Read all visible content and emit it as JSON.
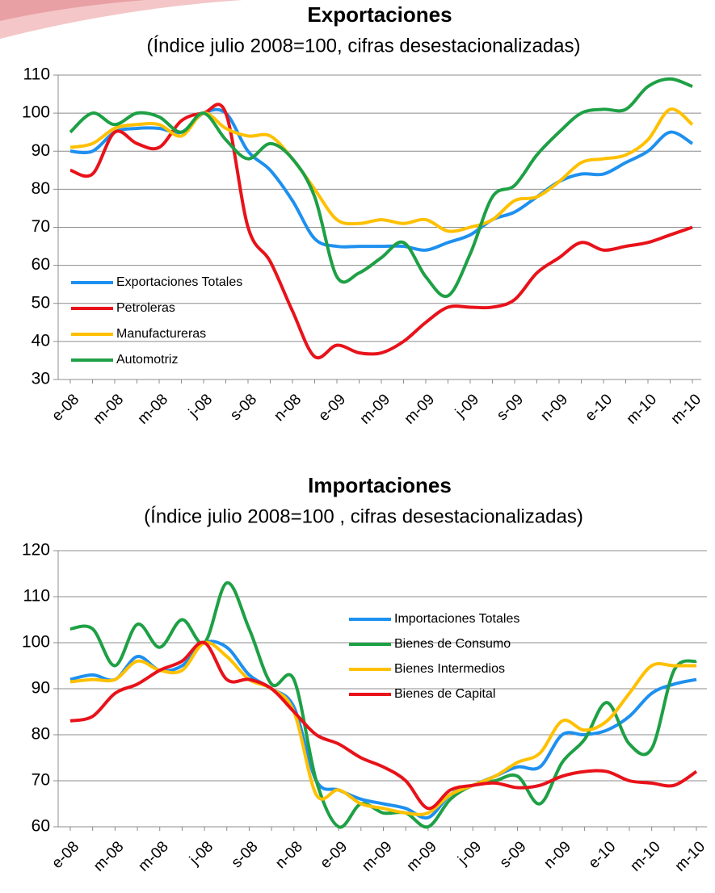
{
  "chart_data": [
    {
      "type": "line",
      "title": "Exportaciones",
      "subtitle": "(Índice julio 2008=100, cifras desestacionalizadas)",
      "categories": [
        "e-08",
        null,
        "m-08",
        null,
        "m-08",
        null,
        "j-08",
        null,
        "s-08",
        null,
        "n-08",
        null,
        "e-09",
        null,
        "m-09",
        null,
        "m-09",
        null,
        "j-09",
        null,
        "s-09",
        null,
        "n-09",
        null,
        "e-10",
        null,
        "m-10",
        null,
        "m-10"
      ],
      "series": [
        {
          "name": "Exportaciones  Totales",
          "color": "#1e90ef",
          "values": [
            90,
            90,
            95,
            96,
            96,
            95,
            100,
            100,
            90,
            85,
            77,
            67,
            65,
            65,
            65,
            65,
            64,
            66,
            68,
            72,
            74,
            78,
            82,
            84,
            84,
            87,
            90,
            95,
            92
          ]
        },
        {
          "name": "Petroleras",
          "color": "#e8121a",
          "values": [
            85,
            84,
            95,
            92,
            91,
            98,
            100,
            100,
            70,
            61,
            48,
            36,
            39,
            37,
            37,
            40,
            45,
            49,
            49,
            49,
            51,
            58,
            62,
            66,
            64,
            65,
            66,
            68,
            70
          ]
        },
        {
          "name": "Manufactureras",
          "color": "#ffc000",
          "values": [
            91,
            92,
            96,
            97,
            97,
            94,
            100,
            96,
            94,
            94,
            88,
            80,
            72,
            71,
            72,
            71,
            72,
            69,
            70,
            72,
            77,
            78,
            82,
            87,
            88,
            89,
            93,
            101,
            97
          ]
        },
        {
          "name": "Automotriz",
          "color": "#1ea045",
          "values": [
            95,
            100,
            97,
            100,
            99,
            95,
            100,
            93,
            88,
            92,
            88,
            78,
            57,
            58,
            62,
            66,
            57,
            52,
            63,
            78,
            81,
            89,
            95,
            100,
            101,
            101,
            107,
            109,
            107
          ]
        }
      ],
      "ylim": [
        30,
        110
      ],
      "yticks": [
        30,
        40,
        50,
        60,
        70,
        80,
        90,
        100,
        110
      ],
      "grid": true,
      "legend": "lower left"
    },
    {
      "type": "line",
      "title": "Importaciones",
      "subtitle": "(Índice julio 2008=100 , cifras desestacionalizadas)",
      "categories": [
        "e-08",
        null,
        "m-08",
        null,
        "m-08",
        null,
        "j-08",
        null,
        "s-08",
        null,
        "n-08",
        null,
        "e-09",
        null,
        "m-09",
        null,
        "m-09",
        null,
        "j-09",
        null,
        "s-09",
        null,
        "n-09",
        null,
        "e-10",
        null,
        "m-10",
        null,
        "m-10"
      ],
      "series": [
        {
          "name": "Importaciones Totales",
          "color": "#1e90ef",
          "values": [
            92,
            93,
            92,
            97,
            94,
            95,
            100,
            99,
            93,
            90,
            86,
            70,
            68,
            66,
            65,
            64,
            62,
            67,
            69,
            71,
            73,
            73,
            80,
            80,
            81,
            84,
            89,
            91,
            92
          ]
        },
        {
          "name": "Bienes de Consumo",
          "color": "#1ea045",
          "values": [
            103,
            103,
            95,
            104,
            99,
            105,
            100,
            113,
            103,
            91,
            92,
            70,
            60,
            65,
            63,
            63,
            60,
            66,
            69,
            70,
            71,
            65,
            74,
            79,
            87,
            78,
            77,
            94,
            96
          ]
        },
        {
          "name": "Bienes Intermedios",
          "color": "#ffc000",
          "values": [
            91.5,
            92,
            92,
            96,
            94,
            94,
            100,
            97,
            92,
            90,
            85,
            67,
            68,
            65,
            64,
            63,
            63,
            67,
            69,
            71,
            74,
            76,
            83,
            81,
            83,
            89,
            95,
            95,
            95
          ]
        },
        {
          "name": "Bienes de Capital",
          "color": "#e8121a",
          "values": [
            83,
            84,
            89,
            91,
            94,
            96,
            100,
            92,
            92,
            90,
            85,
            80,
            78,
            75,
            73,
            70,
            64,
            68,
            69,
            69.5,
            68.5,
            69,
            71,
            72,
            72,
            70,
            69.5,
            69,
            72
          ]
        }
      ],
      "ylim": [
        60,
        120
      ],
      "yticks": [
        60,
        70,
        80,
        90,
        100,
        110,
        120
      ],
      "grid": true,
      "legend": "center right"
    }
  ]
}
